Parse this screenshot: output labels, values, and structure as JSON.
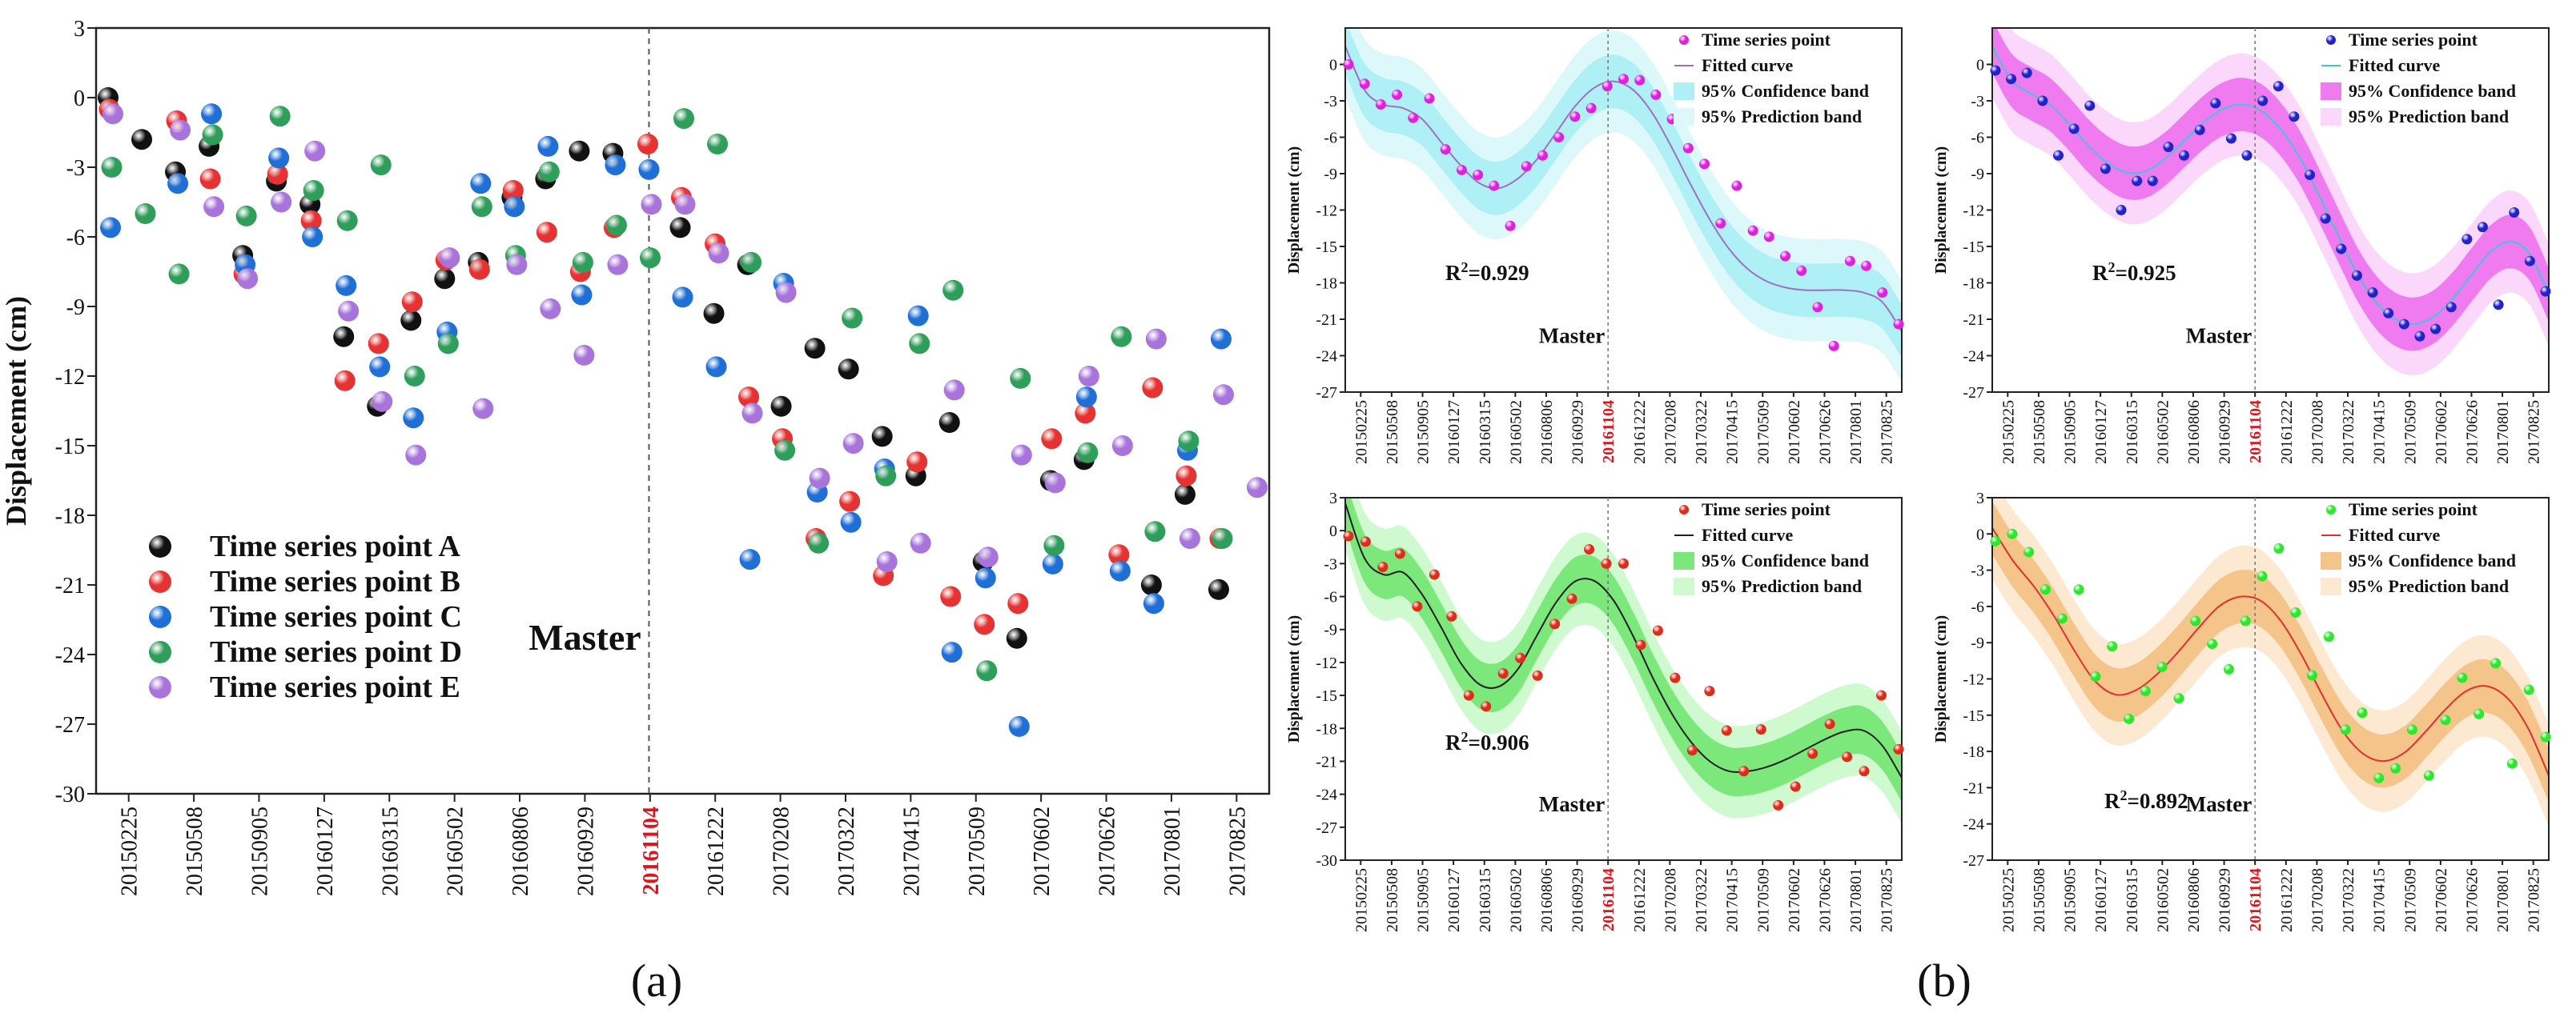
{
  "panel_labels": {
    "a": "(a)",
    "b": "(b)"
  },
  "x_ticks": [
    "20150225",
    "20150508",
    "20150905",
    "20160127",
    "20160315",
    "20160502",
    "20160806",
    "20160929",
    "20161104",
    "20161222",
    "20170208",
    "20170322",
    "20170415",
    "20170509",
    "20170602",
    "20170626",
    "20170801",
    "20170825"
  ],
  "master_tick_index": 8,
  "master_tick_color": "#e0141c",
  "master_label": "Master",
  "chart_data": [
    {
      "id": "a",
      "type": "scatter",
      "ylabel": "Displacement (cm)",
      "ylim": [
        -30,
        3
      ],
      "yticks": [
        3,
        0,
        -3,
        -6,
        -9,
        -12,
        -15,
        -18,
        -21,
        -24,
        -27,
        -30
      ],
      "n_slots": 35,
      "master_slot": 16,
      "series": [
        {
          "name": "Time series point A",
          "color": "#111111",
          "values": [
            0,
            -1.8,
            -3.2,
            -2.1,
            -6.8,
            -3.6,
            -4.6,
            -10.3,
            -13.3,
            -9.6,
            -7.8,
            -7.1,
            -4.3,
            -3.5,
            -2.3,
            -2.4,
            null,
            -5.6,
            -9.3,
            -7.2,
            -13.3,
            -10.8,
            -11.7,
            -14.6,
            -16.3,
            -14,
            -20,
            -23.3,
            -16.5,
            -15.6,
            null,
            -21,
            -17.1,
            -21.2
          ]
        },
        {
          "name": "Time series point B",
          "color": "#e63232",
          "values": [
            -0.5,
            null,
            -1,
            -3.5,
            -7.6,
            -3.3,
            -5.3,
            -12.2,
            -10.6,
            -8.8,
            -7,
            -7.4,
            -4,
            -5.8,
            -7.5,
            -5.6,
            -2,
            -4.3,
            -6.3,
            -12.9,
            -14.7,
            -19,
            -17.4,
            -20.6,
            -15.7,
            -21.5,
            -22.7,
            -21.8,
            -14.7,
            -13.6,
            -19.7,
            -12.5,
            -16.3,
            -19
          ]
        },
        {
          "name": "Time series point C",
          "color": "#1f6fd6",
          "values": [
            -5.6,
            null,
            -3.7,
            -0.7,
            -7.2,
            -2.6,
            -6,
            -8.1,
            -11.6,
            -13.8,
            -10.1,
            -3.7,
            -4.7,
            -2.1,
            -8.5,
            -2.9,
            -3.1,
            -8.6,
            -11.6,
            -19.9,
            -8,
            -17,
            -18.3,
            -16,
            -9.4,
            -23.9,
            -20.7,
            -27.1,
            -20.1,
            -12.9,
            -20.4,
            -21.8,
            -15.2,
            -10.4
          ]
        },
        {
          "name": "Time series point D",
          "color": "#2f9e5a",
          "values": [
            -3,
            -5,
            -7.6,
            -1.6,
            -5.1,
            -0.8,
            -4,
            -5.3,
            -2.9,
            -12,
            -10.6,
            -4.7,
            -6.8,
            -3.2,
            -7.1,
            -5.5,
            -6.9,
            -0.9,
            -2,
            -7.1,
            -15.2,
            -19.2,
            -9.5,
            -16.3,
            -10.6,
            -8.3,
            -24.7,
            -12.1,
            -19.3,
            -15.3,
            -10.3,
            -18.7,
            -14.8,
            -19
          ]
        },
        {
          "name": "Time series point E",
          "color": "#a874dc",
          "values": [
            -0.7,
            null,
            -1.4,
            -4.7,
            -7.8,
            -4.5,
            -2.3,
            -9.2,
            -13.1,
            -15.4,
            -6.9,
            -13.4,
            -7.2,
            -9.1,
            -11.1,
            -7.2,
            -4.6,
            -4.6,
            -6.7,
            -13.6,
            -8.4,
            -16.4,
            -14.9,
            -20,
            -19.2,
            -12.6,
            -19.8,
            -15.4,
            -16.6,
            -12,
            -15,
            -10.4,
            -19,
            -12.8,
            -16.8
          ]
        }
      ]
    },
    {
      "id": "b1",
      "type": "scatter+fit",
      "ylabel": "Displacement (cm)",
      "ylim": [
        -27,
        3
      ],
      "yticks": [
        0,
        -3,
        -6,
        -9,
        -12,
        -15,
        -18,
        -21,
        -24,
        -27
      ],
      "r2_label": "R",
      "r2_sup": "2",
      "r2_value": "=0.929",
      "point_color": "#e020e0",
      "fit_color": "#a070c0",
      "conf_color": "#aef0f6",
      "pred_color": "#dcf8fa",
      "legend": [
        "Time series point",
        "Fitted curve",
        "95% Confidence band",
        "95% Prediction band"
      ],
      "points": [
        0,
        -1.6,
        -3.3,
        -2.5,
        -4.4,
        -2.8,
        -7,
        -8.7,
        -9.1,
        -10,
        -13.3,
        -8.4,
        -7.5,
        -6,
        -4.3,
        -3.6,
        -1.8,
        -1.2,
        -1.3,
        -2.5,
        -4.5,
        -6.9,
        -8.2,
        -13.1,
        -10,
        -13.7,
        -14.2,
        -15.8,
        -17,
        -20,
        -23.2,
        -16.2,
        -16.6,
        -18.8,
        -21.4
      ],
      "fit": [
        1.5,
        -2.1,
        -3.3,
        -3.6,
        -4.5,
        -6.4,
        -8.3,
        -9.8,
        -10.2,
        -9.4,
        -7.8,
        -5.6,
        -3.4,
        -1.9,
        -1.4,
        -2.1,
        -4,
        -6.8,
        -9.9,
        -12.8,
        -15.2,
        -16.9,
        -17.9,
        -18.4,
        -18.6,
        -18.6,
        -18.6,
        -18.8,
        -19.6,
        -22
      ]
    },
    {
      "id": "b2",
      "type": "scatter+fit",
      "ylabel": "Displacement (cm)",
      "ylim": [
        -27,
        3
      ],
      "yticks": [
        0,
        -3,
        -6,
        -9,
        -12,
        -15,
        -18,
        -21,
        -24,
        -27
      ],
      "r2_label": "R",
      "r2_sup": "2",
      "r2_value": "=0.925",
      "point_color": "#2222cc",
      "fit_color": "#40c8d8",
      "conf_color": "#f07af0",
      "pred_color": "#fbd7fb",
      "legend": [
        "Time series point",
        "Fitted curve",
        "95% Confidence band",
        "95% Prediction band"
      ],
      "points": [
        -0.5,
        -1.2,
        -0.7,
        -3,
        -7.5,
        -5.3,
        -3.4,
        -8.6,
        -12,
        -9.6,
        -9.6,
        -6.8,
        -7.5,
        -5.4,
        -3.2,
        -6.1,
        -7.5,
        -3,
        -1.8,
        -4.3,
        -9.1,
        -12.7,
        -15.2,
        -17.4,
        -18.8,
        -20.5,
        -21.4,
        -22.4,
        -21.8,
        -20,
        -14.4,
        -13.4,
        -19.8,
        -12.2,
        -16.2,
        -18.7
      ],
      "fit": [
        1.5,
        -1.3,
        -2.4,
        -3.3,
        -4.9,
        -6.7,
        -8.1,
        -8.9,
        -8.8,
        -7.8,
        -6.3,
        -4.8,
        -3.7,
        -3.3,
        -3.8,
        -5.3,
        -7.6,
        -10.7,
        -14,
        -17.2,
        -19.6,
        -21,
        -21.4,
        -20.8,
        -19.3,
        -17.3,
        -15.4,
        -14.6,
        -15.6,
        -19
      ]
    },
    {
      "id": "b3",
      "type": "scatter+fit",
      "ylabel": "Displacement (cm)",
      "ylim": [
        -30,
        3
      ],
      "yticks": [
        3,
        0,
        -3,
        -6,
        -9,
        -12,
        -15,
        -18,
        -21,
        -24,
        -27,
        -30
      ],
      "r2_label": "R",
      "r2_sup": "2",
      "r2_value": "=0.906",
      "point_color": "#e02a1a",
      "fit_color": "#202020",
      "conf_color": "#7ce87c",
      "pred_color": "#cffacf",
      "legend": [
        "Time series point",
        "Fitted curve",
        "95% Confidence band",
        "95% Prediction band"
      ],
      "points": [
        -0.5,
        -1,
        -3.3,
        -2.1,
        -6.9,
        -4,
        -7.8,
        -15,
        -16,
        -13,
        -11.6,
        -13.2,
        -8.5,
        -6.2,
        -1.7,
        -3,
        -3,
        -10.4,
        -9.1,
        -13.4,
        -20,
        -14.6,
        -18.2,
        -21.9,
        -18.1,
        -25,
        -23.3,
        -20.3,
        -17.6,
        -20.6,
        -21.9,
        -15,
        -19.9
      ],
      "fit": [
        2.5,
        -2.5,
        -4,
        -3.8,
        -5.8,
        -8.8,
        -12,
        -14,
        -14.2,
        -12.6,
        -9.5,
        -6.5,
        -4.6,
        -4.6,
        -6.4,
        -9.6,
        -13.3,
        -16.6,
        -19.2,
        -21,
        -21.9,
        -21.9,
        -21.5,
        -20.8,
        -19.9,
        -19,
        -18.3,
        -18.2,
        -19.6,
        -22.5
      ]
    },
    {
      "id": "b4",
      "type": "scatter+fit",
      "ylabel": "Displacement (cm)",
      "ylim": [
        -27,
        3
      ],
      "yticks": [
        3,
        0,
        -3,
        -6,
        -9,
        -12,
        -15,
        -18,
        -21,
        -24,
        -27
      ],
      "r2_label": "R",
      "r2_sup": "2",
      "r2_value": "=0.892",
      "point_color": "#2ae82a",
      "fit_color": "#e03030",
      "conf_color": "#f4c48a",
      "pred_color": "#fde8d2",
      "legend": [
        "Time series point",
        "Fitted curve",
        "95% Confidence band",
        "95% Prediction band"
      ],
      "points": [
        -0.6,
        0,
        -1.5,
        -4.6,
        -7,
        -4.6,
        -11.8,
        -9.3,
        -15.3,
        -13,
        -11,
        -13.6,
        -7.2,
        -9.1,
        -11.2,
        -7.2,
        -3.5,
        -1.2,
        -6.5,
        -11.7,
        -8.5,
        -16.2,
        -14.8,
        -20.2,
        -19.4,
        -16.2,
        -20,
        -15.4,
        -11.9,
        -14.9,
        -10.7,
        -19,
        -12.9,
        -16.8
      ],
      "fit": [
        0.5,
        -2.2,
        -4.3,
        -6.8,
        -9.7,
        -12.2,
        -13.3,
        -12.9,
        -11.6,
        -9.8,
        -7.8,
        -6,
        -5.2,
        -5.5,
        -7.2,
        -10,
        -13.3,
        -16.3,
        -18.2,
        -18.8,
        -18.1,
        -16.4,
        -14.5,
        -13,
        -12.6,
        -13.6,
        -16.1,
        -20
      ]
    }
  ]
}
